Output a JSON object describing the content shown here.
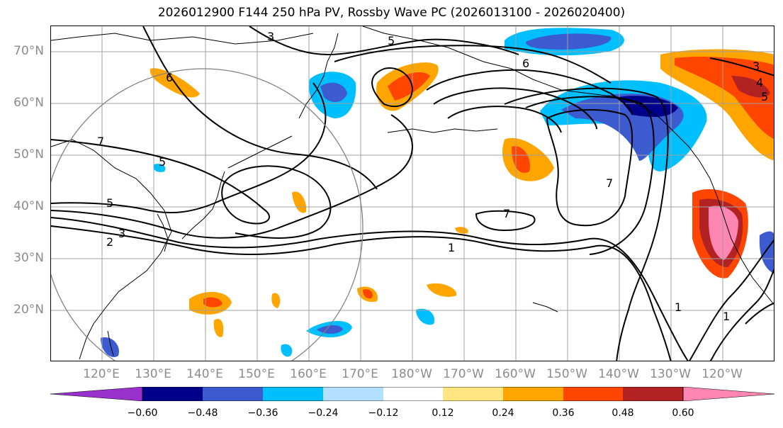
{
  "title": "2026012900 F144 250 hPa PV, Rossby Wave PC (2026013100 - 2026020400)",
  "lat_labels": [
    "70°N",
    "60°N",
    "50°N",
    "40°N",
    "30°N",
    "20°N"
  ],
  "lon_labels": [
    "120°E",
    "130°E",
    "140°E",
    "150°E",
    "160°E",
    "170°E",
    "180°W",
    "170°W",
    "160°W",
    "150°W",
    "140°W",
    "130°W",
    "120°W"
  ],
  "colorbar": {
    "tick_labels": [
      "−0.60",
      "−0.48",
      "−0.36",
      "−0.24",
      "−0.12",
      "0.12",
      "0.24",
      "0.36",
      "0.48",
      "0.60"
    ],
    "colors": [
      "#9932cc",
      "#00008b",
      "#3b5bcf",
      "#00bfff",
      "#b3e0ff",
      "#ffffff",
      "#ffe680",
      "#ffa500",
      "#ff4500",
      "#b22222",
      "#ff85b3"
    ]
  },
  "contour_labels": [
    "3",
    "5",
    "6",
    "6",
    "7",
    "5",
    "5",
    "3",
    "2",
    "7",
    "7",
    "1",
    "1",
    "1",
    "3",
    "4",
    "5"
  ],
  "colors": {
    "contour": "#000000",
    "grid": "#a0a0a0",
    "coast": "#000000",
    "axis_label": "#8c8c8c"
  }
}
